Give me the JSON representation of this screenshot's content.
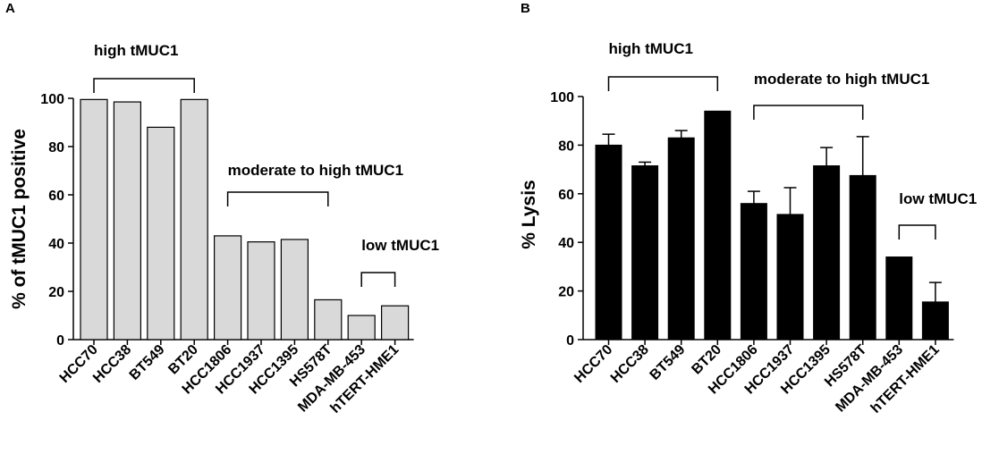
{
  "chart_data": [
    {
      "panel": "A",
      "type": "bar",
      "ylabel": "% of tMUC1 positive",
      "ylim": [
        0,
        100
      ],
      "yticks": [
        0,
        20,
        40,
        60,
        80,
        100
      ],
      "categories": [
        "HCC70",
        "HCC38",
        "BT549",
        "BT20",
        "HCC1806",
        "HCC1937",
        "HCC1395",
        "HS578T",
        "MDA-MB-453",
        "hTERT-HME1"
      ],
      "values": [
        99.5,
        98.5,
        88,
        99.5,
        43,
        40.5,
        41.5,
        16.5,
        10,
        14
      ],
      "bar_color": "#d9d9d9",
      "annotations": [
        {
          "text": "high tMUC1",
          "from": 0,
          "to": 3
        },
        {
          "text": "moderate to high tMUC1",
          "from": 4,
          "to": 7
        },
        {
          "text": "low tMUC1",
          "from": 8,
          "to": 9
        }
      ]
    },
    {
      "panel": "B",
      "type": "bar",
      "ylabel": "% Lysis",
      "ylim": [
        0,
        100
      ],
      "yticks": [
        0,
        20,
        40,
        60,
        80,
        100
      ],
      "categories": [
        "HCC70",
        "HCC38",
        "BT549",
        "BT20",
        "HCC1806",
        "HCC1937",
        "HCC1395",
        "HS578T",
        "MDA-MB-453",
        "hTERT-HME1"
      ],
      "values": [
        80,
        71.5,
        83,
        94,
        56,
        51.5,
        71.5,
        67.5,
        34,
        15.5
      ],
      "errors": [
        4.5,
        1.5,
        3,
        0,
        5,
        11,
        7.5,
        16,
        0,
        8
      ],
      "bar_color": "#000000",
      "annotations": [
        {
          "text": "high tMUC1",
          "from": 0,
          "to": 3
        },
        {
          "text": "moderate to high tMUC1",
          "from": 4,
          "to": 7
        },
        {
          "text": "low tMUC1",
          "from": 8,
          "to": 9
        }
      ]
    }
  ]
}
